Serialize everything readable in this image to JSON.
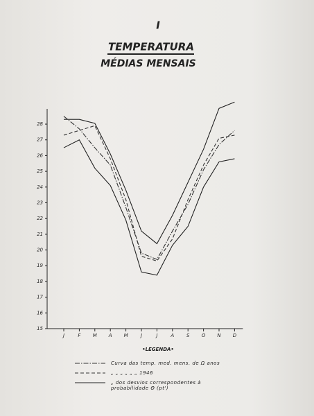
{
  "chart_data": {
    "type": "line",
    "page_number": "I",
    "title": "TEMPERATURA",
    "subtitle": "MÉDIAS MENSAIS",
    "categories": [
      "J",
      "F",
      "M",
      "A",
      "M",
      "J",
      "J",
      "A",
      "S",
      "O",
      "N",
      "D"
    ],
    "ylim": [
      15,
      29.5
    ],
    "yticks": [
      15,
      16,
      17,
      18,
      19,
      20,
      21,
      22,
      23,
      24,
      25,
      26,
      27,
      28
    ],
    "legend_title": "•LEGENDA•",
    "series": [
      {
        "name": "Curva das temp. med. mens. de Ω anos",
        "style": "dashdot",
        "color": "#333333",
        "values": [
          28.5,
          27.7,
          26.5,
          25.4,
          22.7,
          19.8,
          19.4,
          21.2,
          22.9,
          25.1,
          26.7,
          27.6
        ]
      },
      {
        "name": "„ „ „ „ „ „ 1946",
        "style": "dashed",
        "color": "#333333",
        "values": [
          27.3,
          27.6,
          27.9,
          25.8,
          23.2,
          19.6,
          19.3,
          20.7,
          23.2,
          25.4,
          27.1,
          27.3
        ]
      },
      {
        "name": "„ dos desvios correspondentes à probabilidade Θ (pt')",
        "style": "solid",
        "color": "#222222",
        "values": [
          28.3,
          28.3,
          28.05,
          26.1,
          23.8,
          21.2,
          20.4,
          22.2,
          24.3,
          26.4,
          29.0,
          29.4
        ],
        "lower_values": [
          26.5,
          27.0,
          25.2,
          24.1,
          21.9,
          18.6,
          18.4,
          20.3,
          21.5,
          24.0,
          25.6,
          25.8
        ]
      }
    ]
  }
}
